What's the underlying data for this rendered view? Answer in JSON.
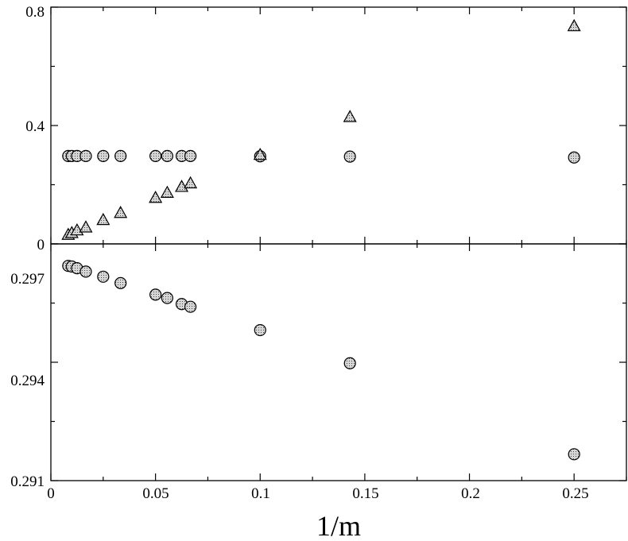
{
  "chart_data": {
    "type": "scatter",
    "xlabel": "1/m",
    "xlim": [
      0,
      0.275
    ],
    "x_ticks": [
      "0",
      "0.05",
      "0.1",
      "0.15",
      "0.2",
      "0.25"
    ],
    "colors": {
      "marker_fill": "#cfcfcf",
      "marker_edge": "#000000",
      "axes": "#000000"
    },
    "marker_pattern": "dotted",
    "grid": false,
    "legend": "none",
    "panels": [
      {
        "id": "top",
        "ylim": [
          0,
          0.8
        ],
        "y_ticks": [
          "0",
          "0.4",
          "0.8"
        ],
        "series": [
          {
            "marker": "circle",
            "x": [
              0.0083,
              0.01,
              0.0125,
              0.0167,
              0.025,
              0.0333,
              0.05,
              0.0556,
              0.0625,
              0.0667,
              0.1,
              0.1429,
              0.25
            ],
            "y": [
              0.297,
              0.297,
              0.297,
              0.297,
              0.297,
              0.297,
              0.297,
              0.297,
              0.297,
              0.297,
              0.296,
              0.295,
              0.292
            ]
          },
          {
            "marker": "triangle",
            "x": [
              0.0083,
              0.01,
              0.0125,
              0.0167,
              0.025,
              0.0333,
              0.05,
              0.0556,
              0.0625,
              0.0667,
              0.1,
              0.1429,
              0.25
            ],
            "y": [
              0.03,
              0.036,
              0.045,
              0.055,
              0.08,
              0.104,
              0.155,
              0.172,
              0.192,
              0.204,
              0.3,
              0.428,
              0.735
            ]
          }
        ]
      },
      {
        "id": "bottom",
        "ylim": [
          0.291,
          0.298
        ],
        "y_ticks": [
          "0.291",
          "0.294",
          "0.297"
        ],
        "series": [
          {
            "marker": "circle",
            "x": [
              0.0083,
              0.01,
              0.0125,
              0.0167,
              0.025,
              0.0333,
              0.05,
              0.0556,
              0.0625,
              0.0667,
              0.1,
              0.1429,
              0.25
            ],
            "y": [
              0.29735,
              0.29733,
              0.29728,
              0.29718,
              0.29703,
              0.29684,
              0.2965,
              0.2964,
              0.29622,
              0.29614,
              0.29545,
              0.29447,
              0.29178
            ]
          }
        ]
      }
    ]
  }
}
